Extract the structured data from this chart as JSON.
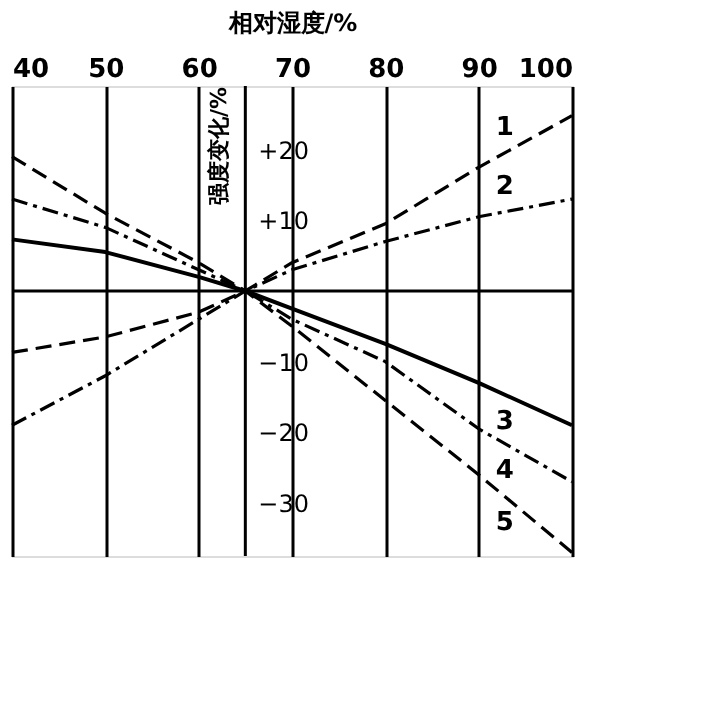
{
  "chart_data": {
    "type": "line",
    "xlabel": "相对湿度/%",
    "ylabel": "强度变化/%",
    "x": [
      40,
      50,
      60,
      65,
      70,
      80,
      90,
      100
    ],
    "series": [
      {
        "name": "1",
        "color": "#000000",
        "line_style": "dashed",
        "values": [
          -8.7,
          -6.5,
          -3,
          0,
          4,
          9.5,
          17.5,
          24.8
        ]
      },
      {
        "name": "2",
        "color": "#000000",
        "line_style": "dashdot",
        "values": [
          -19,
          -12,
          -4,
          0,
          3,
          7,
          10.5,
          13
        ]
      },
      {
        "name": "3",
        "color": "#000000",
        "line_style": "solid",
        "values": [
          7.3,
          5.5,
          2,
          0,
          -2.5,
          -7.5,
          -13,
          -19
        ]
      },
      {
        "name": "4",
        "color": "#000000",
        "line_style": "dashdot",
        "values": [
          13,
          9,
          3,
          0,
          -4,
          -10,
          -19.5,
          -27
        ]
      },
      {
        "name": "5",
        "color": "#000000",
        "line_style": "dashed",
        "values": [
          19,
          11,
          4,
          0,
          -5,
          -15.5,
          -26,
          -37
        ]
      }
    ],
    "xlim": [
      40,
      100
    ],
    "xticks": [
      40,
      50,
      60,
      70,
      80,
      90,
      100
    ],
    "ylim": [
      -37.5,
      29
    ],
    "yticks": [
      {
        "value": 20,
        "label": "+20"
      },
      {
        "value": 10,
        "label": "+10"
      },
      {
        "value": -10,
        "label": "−10"
      },
      {
        "value": -20,
        "label": "−20"
      },
      {
        "value": -30,
        "label": "−30"
      }
    ],
    "ref_lines": [
      {
        "axis": "y",
        "value": 0,
        "label": null
      },
      {
        "axis": "x",
        "value": 65,
        "label": null
      }
    ],
    "grid": "x",
    "marker": "none"
  }
}
